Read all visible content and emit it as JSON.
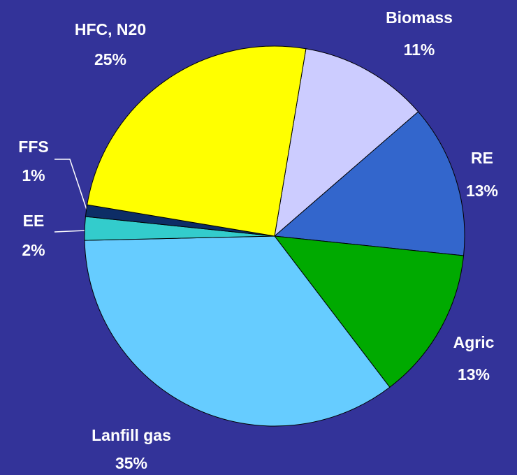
{
  "chart_data": {
    "type": "pie",
    "categories": [
      "Biomass",
      "RE",
      "Agric",
      "Lanfill gas",
      "EE",
      "FFS",
      "HFC, N20"
    ],
    "values": [
      11,
      13,
      13,
      35,
      2,
      1,
      25
    ],
    "value_labels": [
      "11%",
      "13%",
      "13%",
      "35%",
      "2%",
      "1%",
      "25%"
    ],
    "colors": [
      "#ccccff",
      "#3366cc",
      "#00aa00",
      "#66ccff",
      "#33cccc",
      "#0d2d66",
      "#ffff00"
    ]
  }
}
